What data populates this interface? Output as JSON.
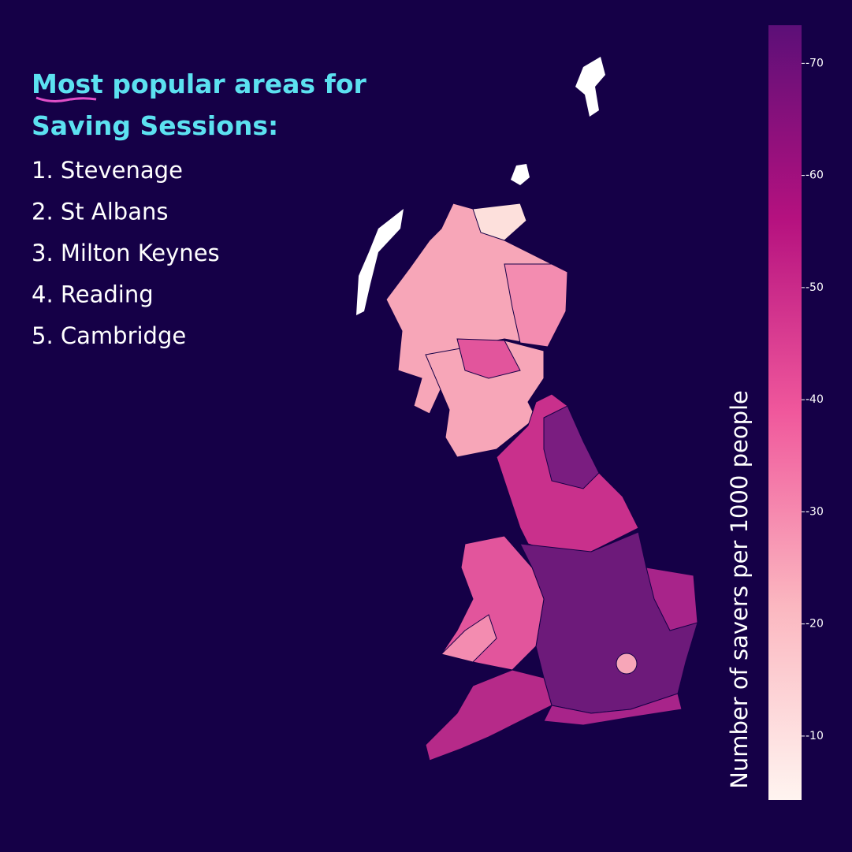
{
  "header": {
    "title_lines": [
      "Most popular areas for",
      "Saving Sessions:"
    ],
    "items": [
      "1.  Stevenage",
      "2. St Albans",
      "3. Milton Keynes",
      "4. Reading",
      "5. Cambridge"
    ]
  },
  "colorbar": {
    "label": "Number of savers per 1000 people",
    "lim": [
      -73.4,
      -4.3
    ],
    "ticks": [
      -70,
      -60,
      -50,
      -40,
      -30,
      -20,
      -10
    ],
    "colors": [
      "#5c0f78",
      "#b5117f",
      "#f0589c",
      "#fbb7c0",
      "#fff4f0"
    ]
  }
}
